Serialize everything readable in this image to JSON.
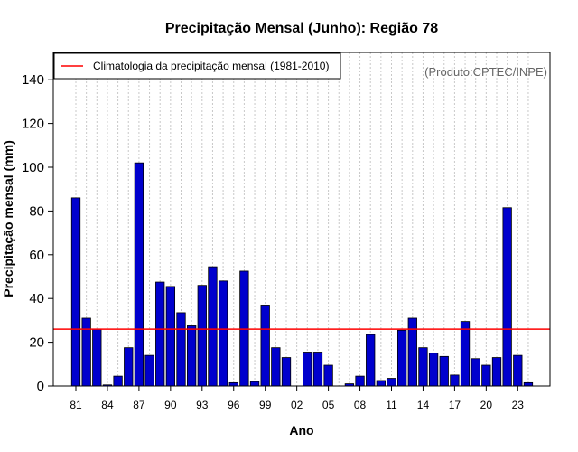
{
  "chart_data": {
    "type": "bar",
    "title": "Precipitação Mensal (Junho): Região 78",
    "xlabel": "Ano",
    "ylabel": "Precipitação mensal (mm)",
    "source_note": "(Produto:CPTEC/INPE)",
    "legend": {
      "label": "Climatologia da precipitação mensal (1981-2010)",
      "color": "#ff0000",
      "position": "top-left"
    },
    "ylim": [
      0,
      150
    ],
    "yticks": [
      0,
      20,
      40,
      60,
      80,
      100,
      120,
      140
    ],
    "climatology_value": 26,
    "bar_color": "#0000cd",
    "categories": [
      "1981",
      "1982",
      "1983",
      "1984",
      "1985",
      "1986",
      "1987",
      "1988",
      "1989",
      "1990",
      "1991",
      "1992",
      "1993",
      "1994",
      "1995",
      "1996",
      "1997",
      "1998",
      "1999",
      "2000",
      "2001",
      "2002",
      "2003",
      "2004",
      "2005",
      "2006",
      "2007",
      "2008",
      "2009",
      "2010",
      "2011",
      "2012",
      "2013",
      "2014",
      "2015",
      "2016",
      "2017",
      "2018",
      "2019",
      "2020",
      "2021",
      "2022",
      "2023",
      "2024"
    ],
    "tick_labels": [
      "81",
      "",
      "",
      "84",
      "",
      "",
      "87",
      "",
      "",
      "90",
      "",
      "",
      "93",
      "",
      "",
      "96",
      "",
      "",
      "99",
      "",
      "",
      "02",
      "",
      "",
      "05",
      "",
      "",
      "08",
      "",
      "",
      "11",
      "",
      "",
      "14",
      "",
      "",
      "17",
      "",
      "",
      "20",
      "",
      "",
      "23",
      ""
    ],
    "values": [
      86,
      31,
      26,
      0.5,
      4.5,
      17.5,
      102,
      14,
      47.5,
      45.5,
      33.5,
      27.5,
      46,
      54.5,
      48,
      1.5,
      52.5,
      2,
      37,
      17.5,
      13,
      0,
      15.5,
      15.5,
      9.5,
      0,
      1,
      4.5,
      23.5,
      2.5,
      3.5,
      25.5,
      31,
      17.5,
      15,
      13.5,
      5,
      29.5,
      12.5,
      9.5,
      13,
      81.5,
      14,
      1.5
    ]
  }
}
